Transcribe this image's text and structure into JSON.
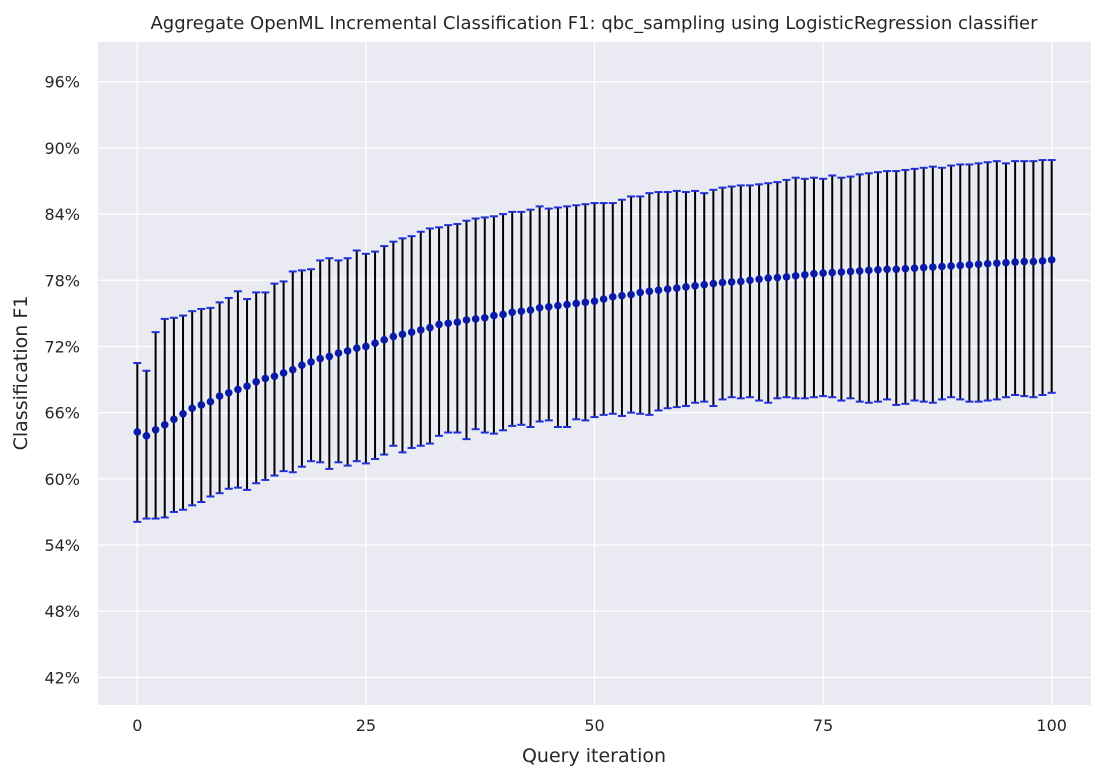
{
  "chart_data": {
    "type": "scatter",
    "title": "Aggregate OpenML Incremental Classification F1: qbc_sampling using LogisticRegression classifier",
    "xlabel": "Query iteration",
    "ylabel": "Classification F1",
    "xlim": [
      -4.3,
      104.3
    ],
    "ylim": [
      0.395,
      0.996
    ],
    "xticks": [
      0,
      25,
      50,
      75,
      100
    ],
    "xtick_labels": [
      "0",
      "25",
      "50",
      "75",
      "100"
    ],
    "yticks": [
      0.42,
      0.48,
      0.54,
      0.6,
      0.66,
      0.72,
      0.78,
      0.84,
      0.9,
      0.96
    ],
    "ytick_labels": [
      "42%",
      "48%",
      "54%",
      "60%",
      "66%",
      "72%",
      "78%",
      "84%",
      "90%",
      "96%"
    ],
    "grid": true,
    "legend": false,
    "colors": {
      "background": "#eaeaf2",
      "grid": "#ffffff",
      "marker": "#0a1aa8",
      "error_bar": "#000000",
      "error_cap": "#2030d8"
    },
    "series": [
      {
        "x": [
          0,
          1,
          2,
          3,
          4,
          5,
          6,
          7,
          8,
          9,
          10,
          11,
          12,
          13,
          14,
          15,
          16,
          17,
          18,
          19,
          20,
          21,
          22,
          23,
          24,
          25,
          26,
          27,
          28,
          29,
          30,
          31,
          32,
          33,
          34,
          35,
          36,
          37,
          38,
          39,
          40,
          41,
          42,
          43,
          44,
          45,
          46,
          47,
          48,
          49,
          50,
          51,
          52,
          53,
          54,
          55,
          56,
          57,
          58,
          59,
          60,
          61,
          62,
          63,
          64,
          65,
          66,
          67,
          68,
          69,
          70,
          71,
          72,
          73,
          74,
          75,
          76,
          77,
          78,
          79,
          80,
          81,
          82,
          83,
          84,
          85,
          86,
          87,
          88,
          89,
          90,
          91,
          92,
          93,
          94,
          95,
          96,
          97,
          98,
          99,
          100
        ],
        "y": [
          0.6425,
          0.639,
          0.6445,
          0.649,
          0.654,
          0.659,
          0.664,
          0.667,
          0.67,
          0.675,
          0.678,
          0.681,
          0.684,
          0.688,
          0.691,
          0.693,
          0.696,
          0.699,
          0.703,
          0.706,
          0.709,
          0.711,
          0.714,
          0.716,
          0.7185,
          0.72,
          0.723,
          0.726,
          0.729,
          0.731,
          0.733,
          0.735,
          0.737,
          0.74,
          0.741,
          0.742,
          0.744,
          0.745,
          0.746,
          0.748,
          0.749,
          0.751,
          0.752,
          0.753,
          0.755,
          0.756,
          0.757,
          0.758,
          0.759,
          0.76,
          0.761,
          0.763,
          0.765,
          0.766,
          0.767,
          0.769,
          0.77,
          0.771,
          0.772,
          0.773,
          0.774,
          0.775,
          0.776,
          0.777,
          0.778,
          0.7785,
          0.779,
          0.78,
          0.781,
          0.782,
          0.7825,
          0.783,
          0.784,
          0.785,
          0.786,
          0.7865,
          0.787,
          0.7875,
          0.788,
          0.7885,
          0.789,
          0.7895,
          0.79,
          0.79,
          0.7905,
          0.791,
          0.7915,
          0.792,
          0.7925,
          0.793,
          0.7935,
          0.794,
          0.7945,
          0.795,
          0.7955,
          0.796,
          0.7965,
          0.797,
          0.797,
          0.7975,
          0.7985
        ],
        "y_upper": [
          0.705,
          0.698,
          0.733,
          0.745,
          0.746,
          0.748,
          0.752,
          0.754,
          0.755,
          0.76,
          0.764,
          0.77,
          0.763,
          0.769,
          0.769,
          0.777,
          0.779,
          0.788,
          0.789,
          0.79,
          0.798,
          0.8,
          0.798,
          0.8,
          0.807,
          0.804,
          0.806,
          0.811,
          0.815,
          0.818,
          0.82,
          0.824,
          0.827,
          0.828,
          0.83,
          0.831,
          0.834,
          0.836,
          0.837,
          0.838,
          0.84,
          0.842,
          0.842,
          0.844,
          0.847,
          0.845,
          0.846,
          0.847,
          0.848,
          0.849,
          0.85,
          0.85,
          0.85,
          0.853,
          0.856,
          0.856,
          0.859,
          0.86,
          0.86,
          0.861,
          0.86,
          0.861,
          0.859,
          0.862,
          0.864,
          0.865,
          0.866,
          0.866,
          0.867,
          0.868,
          0.869,
          0.871,
          0.873,
          0.872,
          0.873,
          0.872,
          0.875,
          0.873,
          0.874,
          0.876,
          0.877,
          0.878,
          0.879,
          0.879,
          0.88,
          0.881,
          0.882,
          0.883,
          0.882,
          0.884,
          0.885,
          0.885,
          0.886,
          0.887,
          0.888,
          0.886,
          0.888,
          0.888,
          0.888,
          0.889,
          0.889
        ],
        "y_lower": [
          0.561,
          0.564,
          0.564,
          0.565,
          0.57,
          0.572,
          0.576,
          0.579,
          0.584,
          0.587,
          0.591,
          0.592,
          0.59,
          0.596,
          0.599,
          0.603,
          0.607,
          0.606,
          0.611,
          0.616,
          0.615,
          0.609,
          0.615,
          0.612,
          0.616,
          0.614,
          0.618,
          0.622,
          0.63,
          0.624,
          0.628,
          0.63,
          0.632,
          0.639,
          0.642,
          0.642,
          0.636,
          0.645,
          0.642,
          0.641,
          0.644,
          0.648,
          0.649,
          0.647,
          0.652,
          0.653,
          0.647,
          0.647,
          0.654,
          0.653,
          0.656,
          0.658,
          0.659,
          0.657,
          0.66,
          0.659,
          0.658,
          0.662,
          0.664,
          0.665,
          0.666,
          0.669,
          0.67,
          0.666,
          0.672,
          0.674,
          0.673,
          0.674,
          0.671,
          0.669,
          0.673,
          0.674,
          0.673,
          0.673,
          0.674,
          0.675,
          0.674,
          0.671,
          0.673,
          0.67,
          0.669,
          0.67,
          0.672,
          0.667,
          0.668,
          0.671,
          0.67,
          0.669,
          0.672,
          0.674,
          0.672,
          0.67,
          0.67,
          0.671,
          0.672,
          0.674,
          0.676,
          0.675,
          0.674,
          0.676,
          0.678
        ]
      }
    ]
  }
}
